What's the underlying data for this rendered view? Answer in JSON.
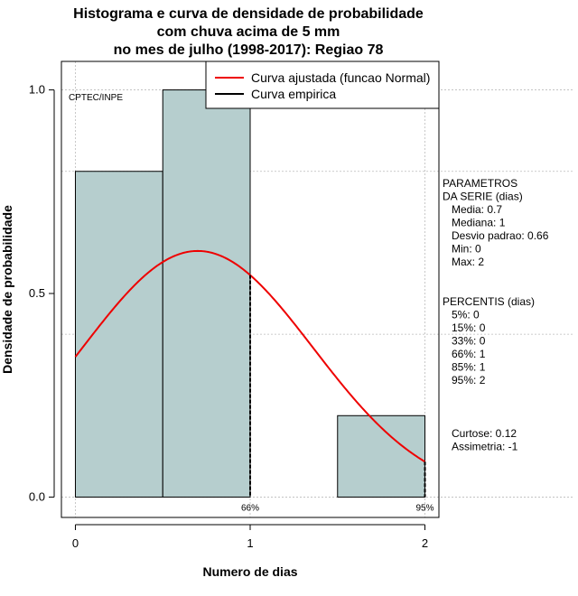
{
  "chart_data": {
    "type": "bar",
    "title_lines": [
      "Histograma e curva de densidade de probabilidade",
      "com chuva acima de 5 mm",
      "no mes de julho (1998-2017): Regiao 78"
    ],
    "xlabel": "Numero de dias",
    "ylabel": "Densidade de probabilidade",
    "xlim": [
      -0.08,
      2.08
    ],
    "ylim": [
      -0.05,
      1.07
    ],
    "x_ticks": [
      "0",
      "1",
      "2"
    ],
    "x_tick_values": [
      0,
      1,
      2
    ],
    "y_ticks": [
      "0.0",
      "0.5",
      "1.0"
    ],
    "y_tick_values": [
      0.0,
      0.5,
      1.0
    ],
    "grid": true,
    "grid_x": [
      0,
      1,
      2
    ],
    "grid_y": [
      0.0,
      0.4,
      0.8,
      1.0
    ],
    "bars": [
      {
        "x0": 0.0,
        "x1": 0.5,
        "density": 0.8
      },
      {
        "x0": 0.5,
        "x1": 1.0,
        "density": 1.0
      },
      {
        "x0": 1.5,
        "x1": 2.0,
        "density": 0.2
      }
    ],
    "bar_color": "#b6cece",
    "normal_curve": {
      "name": "Curva ajustada (funcao Normal)",
      "mean": 0.7,
      "sd": 0.66,
      "color": "#ee0000",
      "x_range": [
        0,
        2
      ]
    },
    "empirical_curve": {
      "name": "Curva empirica",
      "color": "#000000"
    },
    "percentile_markers": [
      {
        "x": 1,
        "label": "66%"
      },
      {
        "x": 2,
        "label": "95%"
      }
    ],
    "watermark": "CPTEC/INPE",
    "legend_placement": "top-right"
  },
  "side_panel": {
    "params": [
      "PARAMETROS",
      "DA SERIE (dias)",
      "   Media: 0.7",
      "   Mediana: 1",
      "   Desvio padrao: 0.66",
      "   Min: 0",
      "   Max: 2"
    ],
    "percentis": [
      "PERCENTIS (dias)",
      "   5%: 0",
      "   15%: 0",
      "   33%: 0",
      "   66%: 1",
      "   85%: 1",
      "   95%: 2"
    ],
    "shape": [
      "Curtose: 0.12",
      "Assimetria: -1"
    ]
  }
}
